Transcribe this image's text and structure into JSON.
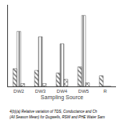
{
  "chart_data": {
    "type": "bar",
    "categories": [
      "DW2",
      "DW3",
      "DW4",
      "DW5",
      "R"
    ],
    "series": [
      {
        "color": "#bbbbbb",
        "marker": "\\",
        "values": [
          0.5,
          0.45,
          0.38,
          0.55,
          0.3
        ]
      },
      {
        "color": "#dddddd",
        "marker": "|",
        "values": [
          1.55,
          1.4,
          1.2,
          2.0,
          0.0
        ]
      },
      {
        "color": "#999999",
        "marker": "x",
        "values": [
          0.08,
          0.08,
          0.2,
          0.1,
          0.0
        ]
      }
    ],
    "xlabel": "Sampling Source",
    "annotations": [
      "4(b)(a) Relative variation of TDS, Conductance and Ch",
      "(All Season Mean) for Dugwells, RSW and PHE Water Sam"
    ],
    "ylim": [
      0,
      2.3
    ],
    "tick_labels": "x",
    "grid": false
  }
}
